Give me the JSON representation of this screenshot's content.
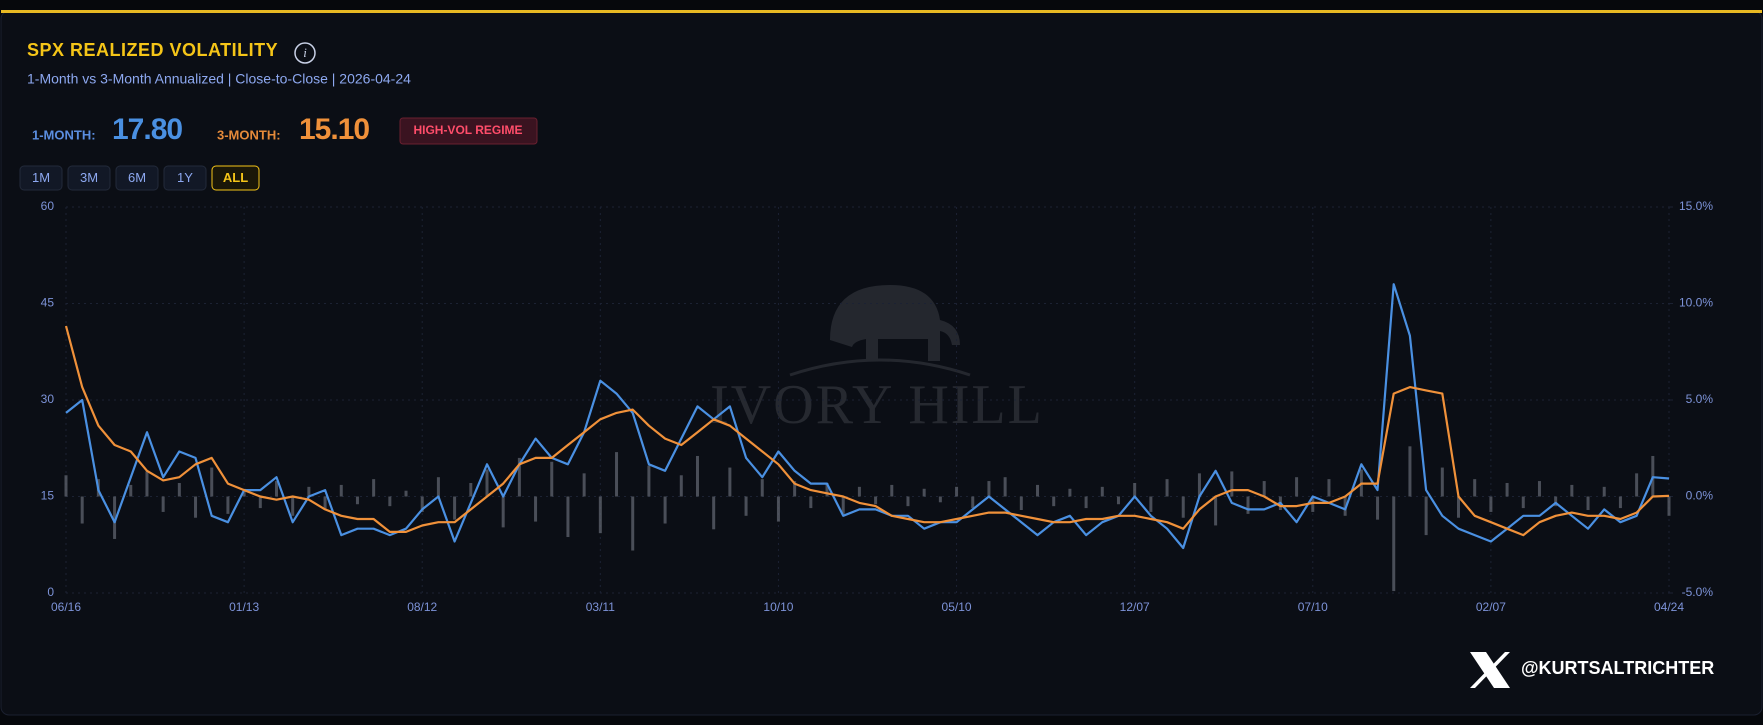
{
  "header": {
    "title": "SPX REALIZED VOLATILITY",
    "subtitle": "1-Month vs 3-Month Annualized | Close-to-Close | 2026-04-24"
  },
  "stats": {
    "one_month_label": "1-MONTH:",
    "one_month_value": "17.80",
    "three_month_label": "3-MONTH:",
    "three_month_value": "15.10",
    "regime": "HIGH-VOL REGIME"
  },
  "range_buttons": [
    "1M",
    "3M",
    "6M",
    "1Y",
    "ALL"
  ],
  "active_button": "ALL",
  "watermark": "IVORY HILL",
  "handle": "@KURTSALTRICHTER",
  "chart_data": {
    "type": "line",
    "xlim": [
      0,
      99
    ],
    "xticks": [
      {
        "value": 0,
        "label": "06/16"
      },
      {
        "value": 11,
        "label": "01/13"
      },
      {
        "value": 22,
        "label": "08/12"
      },
      {
        "value": 33,
        "label": "03/11"
      },
      {
        "value": 44,
        "label": "10/10"
      },
      {
        "value": 55,
        "label": "05/10"
      },
      {
        "value": 66,
        "label": "12/07"
      },
      {
        "value": 77,
        "label": "07/10"
      },
      {
        "value": 88,
        "label": "02/07"
      },
      {
        "value": 99,
        "label": "04/24"
      }
    ],
    "ylim": [
      0,
      60
    ],
    "yticks": [
      0,
      15,
      30,
      45,
      60
    ],
    "y2lim": [
      -5,
      15
    ],
    "y2ticks": [
      {
        "value": -5,
        "label": "-5.0%"
      },
      {
        "value": 0,
        "label": "0.0%"
      },
      {
        "value": 5,
        "label": "5.0%"
      },
      {
        "value": 10,
        "label": "10.0%"
      },
      {
        "value": 15,
        "label": "15.0%"
      }
    ],
    "grid": true,
    "series": [
      {
        "type": "bar",
        "axis": "y2",
        "color": "#5a5f69",
        "values": [
          1.1,
          -1.4,
          0.9,
          -2.2,
          0.6,
          1.3,
          -0.8,
          0.7,
          -1.1,
          1.5,
          -0.9,
          0.4,
          -0.6,
          0.8,
          -1.0,
          0.5,
          -0.7,
          0.6,
          -0.4,
          0.9,
          -0.5,
          0.3,
          -0.8,
          1.0,
          -1.2,
          0.7,
          1.4,
          -1.6,
          2.0,
          -1.3,
          1.8,
          -2.1,
          1.2,
          -1.9,
          2.3,
          -2.8,
          1.6,
          -1.4,
          1.1,
          2.1,
          -1.7,
          1.5,
          -1.0,
          0.9,
          -1.3,
          0.8,
          -0.6,
          0.7,
          -0.9,
          0.5,
          -0.4,
          0.6,
          -0.5,
          0.4,
          -0.3,
          0.5,
          -0.6,
          0.8,
          1.0,
          -0.7,
          0.6,
          -0.5,
          0.4,
          -0.6,
          0.5,
          -0.4,
          0.7,
          -0.8,
          0.9,
          -1.1,
          1.2,
          -1.5,
          1.3,
          -0.9,
          0.8,
          -0.7,
          1.0,
          -0.8,
          0.9,
          -1.0,
          1.4,
          -1.2,
          -4.9,
          2.6,
          -2.0,
          1.5,
          -1.1,
          0.9,
          -0.8,
          0.7,
          -0.6,
          0.8,
          -0.5,
          0.6,
          -0.7,
          0.5,
          -0.6,
          1.2,
          2.1,
          -1.0
        ]
      },
      {
        "color": "#4a90e2",
        "values": [
          28,
          30,
          16,
          11,
          18,
          25,
          18,
          22,
          21,
          12,
          11,
          16,
          16,
          18,
          11,
          15,
          16,
          9,
          10,
          10,
          9,
          10,
          13,
          15,
          8,
          14,
          20,
          15,
          20,
          24,
          21,
          20,
          25,
          33,
          31,
          28,
          20,
          19,
          24,
          29,
          27,
          29,
          21,
          18,
          22,
          19,
          17,
          17,
          12,
          13,
          13,
          12,
          12,
          10,
          11,
          11,
          13,
          15,
          13,
          11,
          9,
          11,
          12,
          9,
          11,
          12,
          15,
          12,
          10,
          7,
          15,
          19,
          14,
          13,
          13,
          14,
          11,
          15,
          14,
          13,
          20,
          16,
          48,
          40,
          16,
          12,
          10,
          9,
          8,
          10,
          12,
          12,
          14,
          12,
          10,
          13,
          11,
          12,
          18,
          17.8
        ]
      },
      {
        "color": "#f0913a",
        "values": [
          41.5,
          32,
          26,
          23,
          22,
          19,
          17.5,
          18,
          20,
          21,
          17,
          16,
          15,
          14.5,
          15,
          14.5,
          13,
          12,
          11.5,
          11.5,
          9.5,
          9.5,
          10.5,
          11,
          11,
          13,
          15,
          17,
          20,
          21,
          21,
          23,
          25,
          27,
          28,
          28.5,
          26,
          24,
          23,
          25,
          27,
          26,
          24,
          22,
          20,
          17,
          16,
          15.5,
          15,
          14,
          13.5,
          12,
          11.5,
          11,
          11,
          11.5,
          12,
          12.5,
          12.5,
          12,
          11.5,
          11,
          11,
          11.5,
          11.5,
          12,
          12,
          11.5,
          11,
          10,
          13,
          15,
          16,
          16,
          15,
          13.5,
          13.5,
          14,
          14,
          15,
          17,
          17,
          31,
          32,
          31.5,
          31,
          15,
          12,
          11,
          10,
          9,
          11,
          12,
          12.5,
          12,
          12,
          11.5,
          12.5,
          15,
          15.1
        ]
      }
    ]
  }
}
